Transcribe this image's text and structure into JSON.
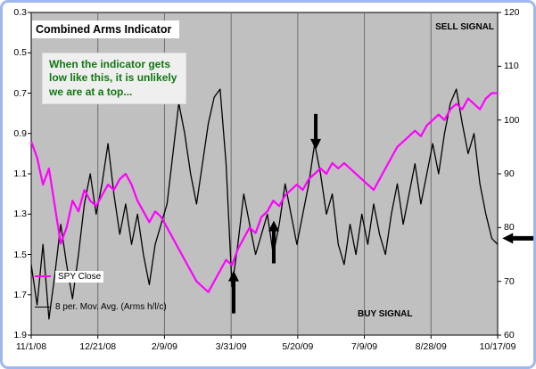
{
  "chart_data": {
    "type": "line",
    "title": "Combined Arms Indicator",
    "x_axis": {
      "labels": [
        "11/1/08",
        "12/21/08",
        "2/9/09",
        "3/31/09",
        "5/20/09",
        "7/9/09",
        "8/28/09",
        "10/17/09"
      ]
    },
    "left_axis": {
      "ticks": [
        "0.3",
        "0.5",
        "0.7",
        "0.9",
        "1.1",
        "1.3",
        "1.5",
        "1.7",
        "1.9"
      ],
      "min": 0.3,
      "max": 1.9,
      "reversed": true
    },
    "right_axis": {
      "ticks": [
        "120",
        "110",
        "100",
        "90",
        "80",
        "70",
        "60"
      ],
      "min": 60,
      "max": 120
    },
    "grid": "vertical-only",
    "plot_background": "#c0c0c0",
    "series": [
      {
        "name": "SPY Close",
        "color": "#ff00ff",
        "axis": "right",
        "width": 2.2,
        "values": [
          96,
          93,
          88,
          91,
          84,
          77,
          80,
          85,
          83,
          87,
          85,
          84,
          86,
          88,
          87,
          89,
          90,
          88,
          85,
          83,
          81,
          83,
          82,
          80,
          78,
          76,
          74,
          72,
          70,
          69,
          68,
          70,
          72,
          74,
          73,
          76,
          78,
          80,
          79,
          82,
          83,
          85,
          84,
          86,
          87,
          88,
          87,
          89,
          90,
          91,
          90,
          92,
          91,
          92,
          91,
          90,
          89,
          88,
          87,
          89,
          91,
          93,
          95,
          96,
          97,
          98,
          97,
          99,
          100,
          101,
          100,
          102,
          103,
          102,
          104,
          103,
          102,
          104,
          105,
          105
        ]
      },
      {
        "name": "8 per. Mov. Avg. (Arms h/l/c)",
        "color": "#000000",
        "axis": "left",
        "width": 1.3,
        "values": [
          1.55,
          1.75,
          1.45,
          1.82,
          1.6,
          1.35,
          1.55,
          1.72,
          1.5,
          1.25,
          1.1,
          1.3,
          1.15,
          0.95,
          1.2,
          1.4,
          1.25,
          1.45,
          1.3,
          1.5,
          1.65,
          1.45,
          1.35,
          1.25,
          1.0,
          0.75,
          0.9,
          1.1,
          1.25,
          1.05,
          0.85,
          0.72,
          0.68,
          1.05,
          1.66,
          1.45,
          1.2,
          1.35,
          1.5,
          1.4,
          1.3,
          1.5,
          1.35,
          1.15,
          1.3,
          1.45,
          1.3,
          1.15,
          0.95,
          1.1,
          1.3,
          1.2,
          1.45,
          1.55,
          1.35,
          1.5,
          1.3,
          1.45,
          1.25,
          1.4,
          1.5,
          1.3,
          1.15,
          1.35,
          1.2,
          1.05,
          1.25,
          1.1,
          0.95,
          1.1,
          0.9,
          0.75,
          0.68,
          0.85,
          1.0,
          0.9,
          1.15,
          1.3,
          1.42,
          1.45
        ]
      }
    ],
    "annotations": {
      "sell_signal": "SELL SIGNAL",
      "buy_signal": "BUY SIGNAL",
      "callout": "When the indicator gets low like this, it is unlikely we are at a top...",
      "callout_color": "#117711",
      "arrows": [
        {
          "dir": "up",
          "fx": 0.434,
          "fy": 0.8
        },
        {
          "dir": "up",
          "fx": 0.52,
          "fy": 0.645
        },
        {
          "dir": "down",
          "fx": 0.61,
          "fy": 0.425
        },
        {
          "dir": "left",
          "fx": 1.01,
          "fy": 0.7
        }
      ]
    }
  }
}
